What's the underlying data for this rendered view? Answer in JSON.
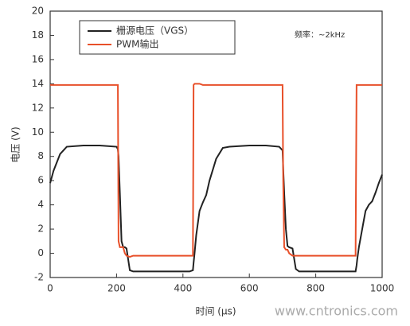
{
  "chart_data": {
    "type": "line",
    "x_label": "时间 (μs)",
    "y_label": "电压 (V)",
    "annotation": "频率：~2kHz",
    "watermark": "www.cntronics.com",
    "x": [
      0,
      10,
      30,
      50,
      100,
      150,
      200,
      204,
      206,
      210,
      215,
      220,
      225,
      230,
      240,
      250,
      300,
      350,
      400,
      420,
      430,
      432,
      435,
      440,
      450,
      460,
      470,
      480,
      500,
      520,
      540,
      600,
      650,
      690,
      700,
      702,
      705,
      710,
      715,
      720,
      730,
      740,
      750,
      800,
      850,
      900,
      915,
      920,
      923,
      925,
      930,
      940,
      950,
      960,
      970,
      980,
      990,
      1000
    ],
    "series": [
      {
        "name": "栅源电压（VGS）",
        "color": "#222222",
        "values": [
          5.8,
          6.8,
          8.2,
          8.8,
          8.9,
          8.9,
          8.8,
          8.6,
          8,
          5,
          1,
          0.5,
          0.5,
          0.4,
          -1.4,
          -1.5,
          -1.5,
          -1.5,
          -1.5,
          -1.5,
          -1.4,
          -0.8,
          0,
          1.5,
          3.5,
          4.2,
          4.8,
          6,
          7.8,
          8.7,
          8.8,
          8.9,
          8.9,
          8.8,
          8.5,
          7,
          5,
          2,
          0.6,
          0.5,
          0.4,
          -1.3,
          -1.5,
          -1.5,
          -1.5,
          -1.5,
          -1.5,
          -1.5,
          -1,
          -0.5,
          0.5,
          2,
          3.5,
          4,
          4.3,
          5,
          5.8,
          6.5
        ]
      },
      {
        "name": "PWM输出",
        "color": "#e8502a",
        "values": [
          13.9,
          13.9,
          13.9,
          13.9,
          13.9,
          13.9,
          13.9,
          13.9,
          1,
          0.5,
          0.5,
          0.5,
          0,
          -0.2,
          -0.3,
          -0.2,
          -0.2,
          -0.2,
          -0.2,
          -0.2,
          -0.2,
          13.9,
          14,
          14,
          14,
          13.9,
          13.9,
          13.9,
          13.9,
          13.9,
          13.9,
          13.9,
          13.9,
          13.9,
          13.9,
          6,
          0.5,
          0.3,
          0.3,
          0,
          -0.2,
          -0.2,
          -0.2,
          -0.2,
          -0.2,
          -0.2,
          -0.2,
          -0.2,
          13.9,
          13.9,
          13.9,
          13.9,
          13.9,
          13.9,
          13.9,
          13.9,
          13.9,
          13.9
        ]
      }
    ],
    "xlim": [
      0,
      1000
    ],
    "xticks": [
      0,
      200,
      400,
      600,
      800,
      1000
    ],
    "ylim": [
      -2,
      20
    ],
    "yticks": [
      -2,
      0,
      2,
      4,
      6,
      8,
      10,
      12,
      14,
      16,
      18,
      20
    ]
  }
}
